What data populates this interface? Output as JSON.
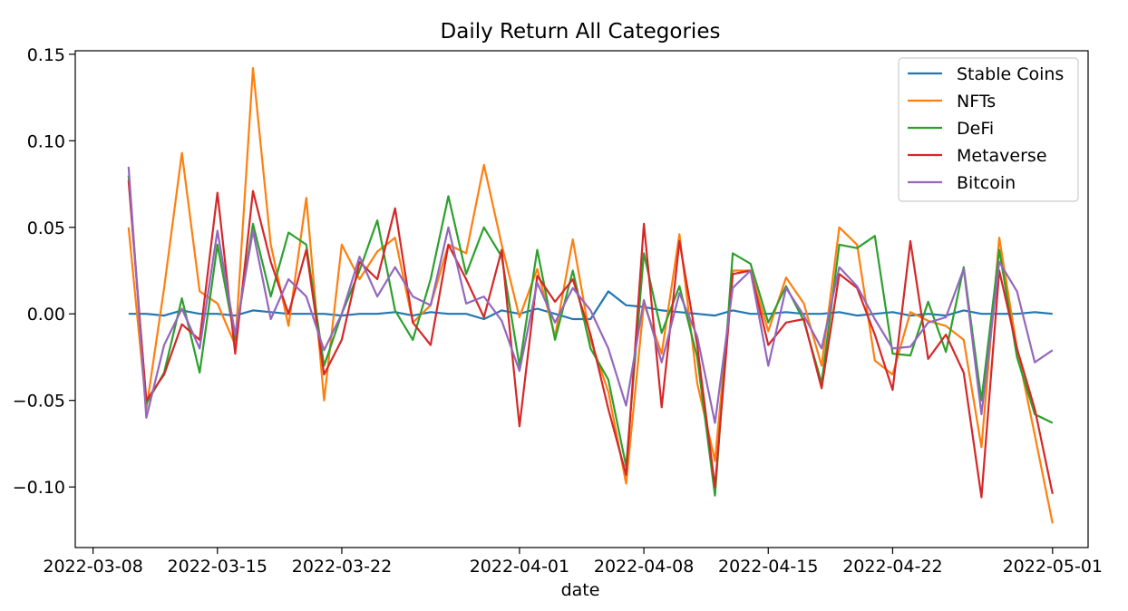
{
  "chart_data": {
    "type": "line",
    "title": "Daily Return All Categories",
    "xlabel": "date",
    "ylabel": "",
    "xlim": [
      "2022-03-07",
      "2022-05-03"
    ],
    "ylim": [
      -0.135,
      0.152
    ],
    "x_ticks": [
      "2022-03-08",
      "2022-03-15",
      "2022-03-22",
      "2022-04-01",
      "2022-04-08",
      "2022-04-15",
      "2022-04-22",
      "2022-05-01"
    ],
    "y_ticks": [
      0.15,
      0.1,
      0.05,
      0.0,
      -0.05,
      -0.1
    ],
    "y_tick_labels": [
      "0.15",
      "0.10",
      "0.05",
      "0.00",
      "−0.05",
      "−0.10"
    ],
    "grid": false,
    "legend_position": "top-right",
    "x": [
      "2022-03-10",
      "2022-03-11",
      "2022-03-12",
      "2022-03-13",
      "2022-03-14",
      "2022-03-15",
      "2022-03-16",
      "2022-03-17",
      "2022-03-18",
      "2022-03-19",
      "2022-03-20",
      "2022-03-21",
      "2022-03-22",
      "2022-03-23",
      "2022-03-24",
      "2022-03-25",
      "2022-03-26",
      "2022-03-27",
      "2022-03-28",
      "2022-03-29",
      "2022-03-30",
      "2022-03-31",
      "2022-04-01",
      "2022-04-02",
      "2022-04-03",
      "2022-04-04",
      "2022-04-05",
      "2022-04-06",
      "2022-04-07",
      "2022-04-08",
      "2022-04-09",
      "2022-04-10",
      "2022-04-11",
      "2022-04-12",
      "2022-04-13",
      "2022-04-14",
      "2022-04-15",
      "2022-04-16",
      "2022-04-17",
      "2022-04-18",
      "2022-04-19",
      "2022-04-20",
      "2022-04-21",
      "2022-04-22",
      "2022-04-23",
      "2022-04-24",
      "2022-04-25",
      "2022-04-26",
      "2022-04-27",
      "2022-04-28",
      "2022-04-29",
      "2022-04-30",
      "2022-05-01"
    ],
    "series": [
      {
        "name": "Stable Coins",
        "color": "#1f77b4",
        "values": [
          0.0,
          0.0,
          -0.001,
          0.002,
          0.0,
          0.0,
          -0.001,
          0.002,
          0.001,
          0.0,
          0.0,
          0.0,
          -0.001,
          0.0,
          0.0,
          0.001,
          -0.001,
          0.001,
          0.0,
          0.0,
          -0.003,
          0.002,
          0.0,
          0.003,
          0.0,
          -0.003,
          -0.003,
          0.013,
          0.005,
          0.004,
          0.002,
          0.001,
          0.0,
          -0.001,
          0.002,
          0.0,
          0.0,
          0.001,
          0.0,
          0.0,
          0.001,
          -0.001,
          0.0,
          0.001,
          -0.001,
          0.0,
          -0.001,
          0.002,
          0.0,
          0.0,
          0.0,
          0.001,
          0.0
        ]
      },
      {
        "name": "NFTs",
        "color": "#ff7f0e",
        "values": [
          0.05,
          -0.055,
          0.015,
          0.093,
          0.013,
          0.006,
          -0.018,
          0.142,
          0.04,
          -0.007,
          0.067,
          -0.05,
          0.04,
          0.02,
          0.036,
          0.044,
          -0.005,
          0.005,
          0.04,
          0.035,
          0.086,
          0.04,
          -0.002,
          0.026,
          -0.013,
          0.043,
          -0.015,
          -0.045,
          -0.098,
          0.006,
          -0.023,
          0.046,
          -0.04,
          -0.085,
          0.025,
          0.025,
          -0.01,
          0.021,
          0.006,
          -0.03,
          0.05,
          0.04,
          -0.027,
          -0.035,
          0.001,
          -0.004,
          -0.007,
          -0.015,
          -0.077,
          0.044,
          -0.02,
          -0.07,
          -0.121
        ]
      },
      {
        "name": "DeFi",
        "color": "#2ca02c",
        "values": [
          0.08,
          -0.052,
          -0.034,
          0.009,
          -0.034,
          0.04,
          -0.015,
          0.052,
          0.01,
          0.047,
          0.04,
          -0.03,
          0.0,
          0.025,
          0.054,
          0.002,
          -0.015,
          0.02,
          0.068,
          0.023,
          0.05,
          0.033,
          -0.03,
          0.037,
          -0.015,
          0.025,
          -0.02,
          -0.038,
          -0.088,
          0.035,
          -0.011,
          0.016,
          -0.025,
          -0.105,
          0.035,
          0.029,
          -0.005,
          0.016,
          -0.004,
          -0.04,
          0.04,
          0.038,
          0.045,
          -0.023,
          -0.024,
          0.007,
          -0.022,
          0.027,
          -0.05,
          0.037,
          -0.025,
          -0.058,
          -0.063
        ]
      },
      {
        "name": "Metaverse",
        "color": "#d62728",
        "values": [
          0.077,
          -0.05,
          -0.035,
          -0.006,
          -0.015,
          0.07,
          -0.023,
          0.071,
          0.03,
          0.0,
          0.037,
          -0.035,
          -0.015,
          0.03,
          0.02,
          0.061,
          -0.005,
          -0.018,
          0.04,
          0.02,
          -0.002,
          0.037,
          -0.065,
          0.022,
          0.007,
          0.02,
          -0.012,
          -0.055,
          -0.093,
          0.052,
          -0.054,
          0.042,
          -0.018,
          -0.1,
          0.023,
          0.025,
          -0.018,
          -0.005,
          -0.003,
          -0.043,
          0.023,
          0.015,
          -0.012,
          -0.044,
          0.042,
          -0.026,
          -0.012,
          -0.034,
          -0.106,
          0.025,
          -0.02,
          -0.055,
          -0.104
        ]
      },
      {
        "name": "Bitcoin",
        "color": "#9467bd",
        "values": [
          0.085,
          -0.06,
          -0.018,
          0.003,
          -0.02,
          0.048,
          -0.012,
          0.048,
          -0.003,
          0.02,
          0.01,
          -0.021,
          0.0,
          0.033,
          0.01,
          0.027,
          0.01,
          0.005,
          0.05,
          0.006,
          0.01,
          -0.004,
          -0.033,
          0.018,
          -0.005,
          0.015,
          0.002,
          -0.02,
          -0.053,
          0.008,
          -0.028,
          0.012,
          -0.013,
          -0.063,
          0.015,
          0.025,
          -0.03,
          0.015,
          -0.001,
          -0.02,
          0.027,
          0.016,
          -0.003,
          -0.02,
          -0.019,
          -0.005,
          -0.002,
          0.026,
          -0.058,
          0.03,
          0.013,
          -0.028,
          -0.021
        ]
      }
    ]
  }
}
